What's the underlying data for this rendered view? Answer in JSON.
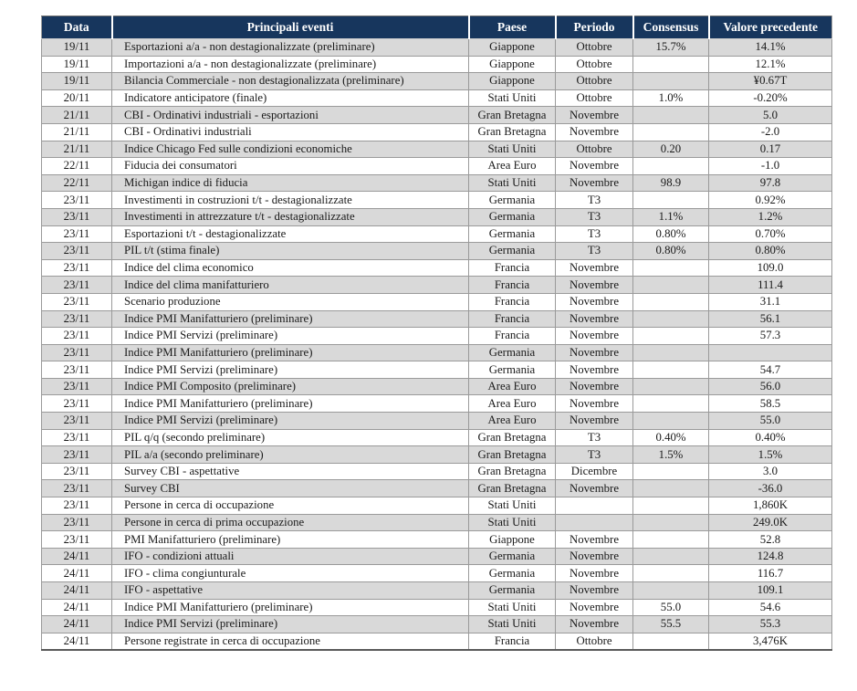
{
  "colors": {
    "header_bg": "#17365D",
    "header_text": "#FFFFFF",
    "row_alt_bg": "#D9D9D9",
    "row_bg": "#FFFFFF",
    "border_inner": "#9A9A9A",
    "border_bottom": "#595959",
    "text": "#1A1A1A"
  },
  "table": {
    "columns": [
      "Data",
      "Principali eventi",
      "Paese",
      "Periodo",
      "Consensus",
      "Valore precedente"
    ],
    "rows": [
      {
        "data": "19/11",
        "evento": "Esportazioni a/a - non destagionalizzate (preliminare)",
        "paese": "Giappone",
        "periodo": "Ottobre",
        "consensus": "15.7%",
        "valore": "14.1%"
      },
      {
        "data": "19/11",
        "evento": "Importazioni a/a - non destagionalizzate (preliminare)",
        "paese": "Giappone",
        "periodo": "Ottobre",
        "consensus": "",
        "valore": "12.1%"
      },
      {
        "data": "19/11",
        "evento": "Bilancia Commerciale - non destagionalizzata (preliminare)",
        "paese": "Giappone",
        "periodo": "Ottobre",
        "consensus": "",
        "valore": "¥0.67T"
      },
      {
        "data": "20/11",
        "evento": "Indicatore anticipatore (finale)",
        "paese": "Stati Uniti",
        "periodo": "Ottobre",
        "consensus": "1.0%",
        "valore": "-0.20%"
      },
      {
        "data": "21/11",
        "evento": "CBI - Ordinativi industriali - esportazioni",
        "paese": "Gran Bretagna",
        "periodo": "Novembre",
        "consensus": "",
        "valore": "5.0"
      },
      {
        "data": "21/11",
        "evento": "CBI - Ordinativi industriali",
        "paese": "Gran Bretagna",
        "periodo": "Novembre",
        "consensus": "",
        "valore": "-2.0"
      },
      {
        "data": "21/11",
        "evento": "Indice Chicago Fed sulle condizioni economiche",
        "paese": "Stati Uniti",
        "periodo": "Ottobre",
        "consensus": "0.20",
        "valore": "0.17"
      },
      {
        "data": "22/11",
        "evento": "Fiducia dei consumatori",
        "paese": "Area Euro",
        "periodo": "Novembre",
        "consensus": "",
        "valore": "-1.0"
      },
      {
        "data": "22/11",
        "evento": "Michigan indice di fiducia",
        "paese": "Stati Uniti",
        "periodo": "Novembre",
        "consensus": "98.9",
        "valore": "97.8"
      },
      {
        "data": "23/11",
        "evento": "Investimenti in costruzioni t/t - destagionalizzate",
        "paese": "Germania",
        "periodo": "T3",
        "consensus": "",
        "valore": "0.92%"
      },
      {
        "data": "23/11",
        "evento": "Investimenti in attrezzature t/t - destagionalizzate",
        "paese": "Germania",
        "periodo": "T3",
        "consensus": "1.1%",
        "valore": "1.2%"
      },
      {
        "data": "23/11",
        "evento": "Esportazioni t/t - destagionalizzate",
        "paese": "Germania",
        "periodo": "T3",
        "consensus": "0.80%",
        "valore": "0.70%"
      },
      {
        "data": "23/11",
        "evento": "PIL t/t  (stima finale)",
        "paese": "Germania",
        "periodo": "T3",
        "consensus": "0.80%",
        "valore": "0.80%"
      },
      {
        "data": "23/11",
        "evento": "Indice del clima economico",
        "paese": "Francia",
        "periodo": "Novembre",
        "consensus": "",
        "valore": "109.0"
      },
      {
        "data": "23/11",
        "evento": "Indice del clima manifatturiero",
        "paese": "Francia",
        "periodo": "Novembre",
        "consensus": "",
        "valore": "111.4"
      },
      {
        "data": "23/11",
        "evento": "Scenario produzione",
        "paese": "Francia",
        "periodo": "Novembre",
        "consensus": "",
        "valore": "31.1"
      },
      {
        "data": "23/11",
        "evento": "Indice PMI Manifatturiero (preliminare)",
        "paese": "Francia",
        "periodo": "Novembre",
        "consensus": "",
        "valore": "56.1"
      },
      {
        "data": "23/11",
        "evento": "Indice PMI Servizi (preliminare)",
        "paese": "Francia",
        "periodo": "Novembre",
        "consensus": "",
        "valore": "57.3"
      },
      {
        "data": "23/11",
        "evento": "Indice PMI Manifatturiero (preliminare)",
        "paese": "Germania",
        "periodo": "Novembre",
        "consensus": "",
        "valore": ""
      },
      {
        "data": "23/11",
        "evento": "Indice PMI Servizi (preliminare)",
        "paese": "Germania",
        "periodo": "Novembre",
        "consensus": "",
        "valore": "54.7"
      },
      {
        "data": "23/11",
        "evento": "Indice PMI Composito (preliminare)",
        "paese": "Area Euro",
        "periodo": "Novembre",
        "consensus": "",
        "valore": "56.0"
      },
      {
        "data": "23/11",
        "evento": "Indice PMI Manifatturiero (preliminare)",
        "paese": "Area Euro",
        "periodo": "Novembre",
        "consensus": "",
        "valore": "58.5"
      },
      {
        "data": "23/11",
        "evento": "Indice PMI Servizi (preliminare)",
        "paese": "Area Euro",
        "periodo": "Novembre",
        "consensus": "",
        "valore": "55.0"
      },
      {
        "data": "23/11",
        "evento": "PIL q/q (secondo preliminare)",
        "paese": "Gran Bretagna",
        "periodo": "T3",
        "consensus": "0.40%",
        "valore": "0.40%"
      },
      {
        "data": "23/11",
        "evento": "PIL a/a (secondo preliminare)",
        "paese": "Gran Bretagna",
        "periodo": "T3",
        "consensus": "1.5%",
        "valore": "1.5%"
      },
      {
        "data": "23/11",
        "evento": "Survey CBI - aspettative",
        "paese": "Gran Bretagna",
        "periodo": "Dicembre",
        "consensus": "",
        "valore": "3.0"
      },
      {
        "data": "23/11",
        "evento": "Survey CBI",
        "paese": "Gran Bretagna",
        "periodo": "Novembre",
        "consensus": "",
        "valore": "-36.0"
      },
      {
        "data": "23/11",
        "evento": "Persone in cerca di occupazione",
        "paese": "Stati Uniti",
        "periodo": "",
        "consensus": "",
        "valore": "1,860K"
      },
      {
        "data": "23/11",
        "evento": "Persone in cerca di prima occupazione",
        "paese": "Stati Uniti",
        "periodo": "",
        "consensus": "",
        "valore": "249.0K"
      },
      {
        "data": "23/11",
        "evento": "PMI Manifatturiero (preliminare)",
        "paese": "Giappone",
        "periodo": "Novembre",
        "consensus": "",
        "valore": "52.8"
      },
      {
        "data": "24/11",
        "evento": "IFO - condizioni attuali",
        "paese": "Germania",
        "periodo": "Novembre",
        "consensus": "",
        "valore": "124.8"
      },
      {
        "data": "24/11",
        "evento": "IFO - clima congiunturale",
        "paese": "Germania",
        "periodo": "Novembre",
        "consensus": "",
        "valore": "116.7"
      },
      {
        "data": "24/11",
        "evento": "IFO - aspettative",
        "paese": "Germania",
        "periodo": "Novembre",
        "consensus": "",
        "valore": "109.1"
      },
      {
        "data": "24/11",
        "evento": "Indice PMI Manifatturiero (preliminare)",
        "paese": "Stati Uniti",
        "periodo": "Novembre",
        "consensus": "55.0",
        "valore": "54.6"
      },
      {
        "data": "24/11",
        "evento": "Indice PMI Servizi (preliminare)",
        "paese": "Stati Uniti",
        "periodo": "Novembre",
        "consensus": "55.5",
        "valore": "55.3"
      },
      {
        "data": "24/11",
        "evento": "Persone registrate in cerca di occupazione",
        "paese": "Francia",
        "periodo": "Ottobre",
        "consensus": "",
        "valore": "3,476K"
      }
    ]
  }
}
